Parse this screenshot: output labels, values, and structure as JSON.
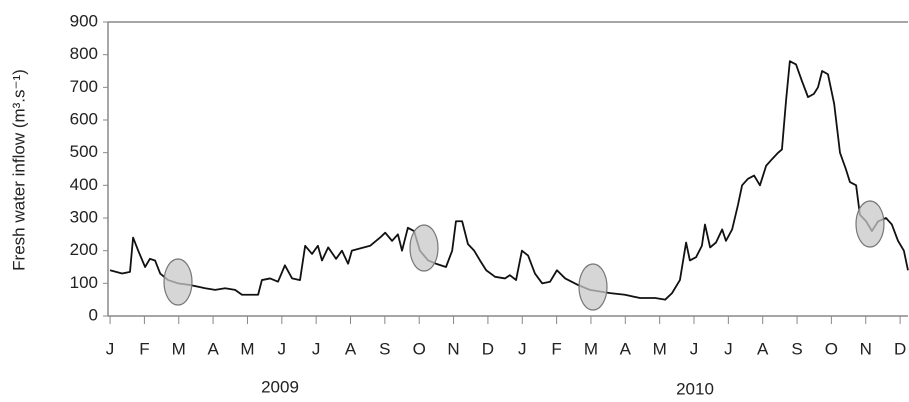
{
  "chart_data": {
    "type": "line",
    "y_label": "Fresh water inflow (m³.s⁻¹)",
    "year_labels": [
      "2009",
      "2010"
    ],
    "x": [
      0,
      0.35,
      0.58,
      0.67,
      0.82,
      1.02,
      1.16,
      1.31,
      1.46,
      1.69,
      1.98,
      2.33,
      2.77,
      3.06,
      3.35,
      3.64,
      3.84,
      4.31,
      4.42,
      4.66,
      4.89,
      5.09,
      5.3,
      5.53,
      5.68,
      5.88,
      6.05,
      6.17,
      6.35,
      6.58,
      6.75,
      6.93,
      7.04,
      7.57,
      7.86,
      8.01,
      8.21,
      8.38,
      8.5,
      8.67,
      8.85,
      9.02,
      9.26,
      9.49,
      9.78,
      9.96,
      10.07,
      10.25,
      10.42,
      10.6,
      10.77,
      10.95,
      11.21,
      11.5,
      11.64,
      11.82,
      11.99,
      12.17,
      12.37,
      12.58,
      12.81,
      13.01,
      13.25,
      13.62,
      13.97,
      14.26,
      14.56,
      14.99,
      15.43,
      15.87,
      16.16,
      16.36,
      16.59,
      16.77,
      16.88,
      17.06,
      17.23,
      17.32,
      17.47,
      17.64,
      17.82,
      17.93,
      18.11,
      18.28,
      18.4,
      18.57,
      18.75,
      18.92,
      19.1,
      19.27,
      19.45,
      19.56,
      19.68,
      19.79,
      19.97,
      20.14,
      20.32,
      20.49,
      20.61,
      20.73,
      20.9,
      21.08,
      21.25,
      21.42,
      21.54,
      21.72,
      21.83,
      22.01,
      22.18,
      22.36,
      22.59,
      22.76,
      22.94,
      23.11,
      23.23
    ],
    "series": [
      {
        "color": "#111111",
        "values": [
          140,
          130,
          135,
          240,
          200,
          150,
          175,
          170,
          130,
          110,
          100,
          95,
          85,
          80,
          85,
          80,
          65,
          65,
          110,
          115,
          105,
          155,
          115,
          110,
          215,
          190,
          215,
          170,
          210,
          175,
          200,
          160,
          200,
          215,
          240,
          255,
          230,
          250,
          200,
          270,
          260,
          200,
          170,
          160,
          150,
          200,
          290,
          290,
          220,
          200,
          170,
          140,
          120,
          115,
          125,
          110,
          200,
          185,
          130,
          100,
          105,
          140,
          115,
          95,
          80,
          75,
          70,
          65,
          55,
          55,
          50,
          70,
          110,
          225,
          170,
          180,
          215,
          280,
          210,
          225,
          265,
          230,
          265,
          340,
          400,
          420,
          430,
          400,
          460,
          480,
          500,
          510,
          660,
          780,
          770,
          720,
          670,
          680,
          700,
          750,
          740,
          650,
          500,
          450,
          410,
          400,
          310,
          290,
          260,
          290,
          300,
          280,
          230,
          200,
          140
        ]
      }
    ],
    "xlim": [
      -0.06,
      23.23
    ],
    "xticks": [
      {
        "value": 0,
        "label": "J"
      },
      {
        "value": 1,
        "label": "F"
      },
      {
        "value": 2,
        "label": "M"
      },
      {
        "value": 3,
        "label": "A"
      },
      {
        "value": 4,
        "label": "M"
      },
      {
        "value": 5,
        "label": "J"
      },
      {
        "value": 6,
        "label": "J"
      },
      {
        "value": 7,
        "label": "A"
      },
      {
        "value": 8,
        "label": "S"
      },
      {
        "value": 9,
        "label": "O"
      },
      {
        "value": 10,
        "label": "N"
      },
      {
        "value": 11,
        "label": "D"
      },
      {
        "value": 12,
        "label": "J"
      },
      {
        "value": 13,
        "label": "F"
      },
      {
        "value": 14,
        "label": "M"
      },
      {
        "value": 15,
        "label": "A"
      },
      {
        "value": 16,
        "label": "M"
      },
      {
        "value": 17,
        "label": "J"
      },
      {
        "value": 18,
        "label": "J"
      },
      {
        "value": 19,
        "label": "A"
      },
      {
        "value": 20,
        "label": "S"
      },
      {
        "value": 21,
        "label": "O"
      },
      {
        "value": 22,
        "label": "N"
      },
      {
        "value": 23,
        "label": "D"
      }
    ],
    "ylim": [
      0,
      900
    ],
    "yticks": [
      0,
      100,
      200,
      300,
      400,
      500,
      600,
      700,
      800,
      900
    ],
    "grid": false
  }
}
